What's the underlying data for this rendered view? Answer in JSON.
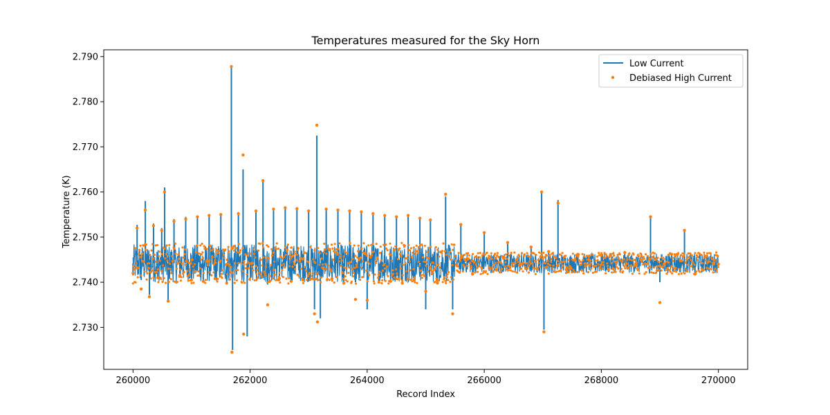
{
  "chart_data": {
    "type": "line",
    "title": "Temperatures measured for the Sky Horn",
    "xlabel": "Record Index",
    "ylabel": "Temperature (K)",
    "xlim": [
      259500,
      270500
    ],
    "ylim": [
      2.7207,
      2.7915
    ],
    "xticks": [
      260000,
      262000,
      264000,
      266000,
      268000,
      270000
    ],
    "yticks": [
      2.73,
      2.74,
      2.75,
      2.76,
      2.77,
      2.78,
      2.79
    ],
    "xtick_labels": [
      "260000",
      "262000",
      "264000",
      "266000",
      "268000",
      "270000"
    ],
    "ytick_labels": [
      "2.730",
      "2.740",
      "2.750",
      "2.760",
      "2.770",
      "2.780",
      "2.790"
    ],
    "legend_position": "top-right",
    "colors": {
      "low_current": "#1f77b4",
      "high_current": "#ff7f0e"
    },
    "series": [
      {
        "name": "Low Current",
        "style": "line",
        "x": [
          260000,
          260070,
          260140,
          260210,
          260280,
          260350,
          260420,
          260490,
          260540,
          260600,
          260700,
          260800,
          260900,
          261000,
          261100,
          261200,
          261300,
          261400,
          261500,
          261600,
          261680,
          261700,
          261800,
          261880,
          261950,
          262100,
          262220,
          262300,
          262400,
          262500,
          262600,
          262700,
          262800,
          262900,
          263000,
          263100,
          263140,
          263200,
          263300,
          263400,
          263500,
          263600,
          263700,
          263800,
          263900,
          264000,
          264100,
          264200,
          264300,
          264400,
          264500,
          264600,
          264700,
          264800,
          264900,
          265000,
          265080,
          265200,
          265340,
          265460,
          265600,
          265800,
          266000,
          266200,
          266400,
          266600,
          266800,
          266980,
          267020,
          267100,
          267260,
          267400,
          267600,
          267800,
          268000,
          268200,
          268400,
          268600,
          268840,
          269000,
          269200,
          269420,
          269600,
          269800,
          270000
        ],
        "y": [
          2.7415,
          2.7527,
          2.7405,
          2.758,
          2.7372,
          2.753,
          2.7412,
          2.752,
          2.761,
          2.736,
          2.754,
          2.742,
          2.7545,
          2.7408,
          2.7548,
          2.7405,
          2.755,
          2.741,
          2.7552,
          2.74,
          2.788,
          2.725,
          2.7555,
          2.765,
          2.728,
          2.756,
          2.7628,
          2.7395,
          2.7565,
          2.741,
          2.7568,
          2.7405,
          2.7566,
          2.7408,
          2.756,
          2.734,
          2.7725,
          2.732,
          2.7565,
          2.741,
          2.7562,
          2.74,
          2.756,
          2.74,
          2.7558,
          2.734,
          2.7555,
          2.7402,
          2.755,
          2.7405,
          2.7548,
          2.74,
          2.755,
          2.7408,
          2.7545,
          2.734,
          2.754,
          2.74,
          2.759,
          2.734,
          2.753,
          2.742,
          2.7512,
          2.743,
          2.749,
          2.744,
          2.748,
          2.76,
          2.7295,
          2.747,
          2.7582,
          2.743,
          2.7465,
          2.744,
          2.7462,
          2.7432,
          2.7468,
          2.744,
          2.7548,
          2.74,
          2.7465,
          2.7518,
          2.742,
          2.746,
          2.744
        ]
      },
      {
        "name": "Debiased High Current",
        "style": "scatter",
        "x": [
          260000,
          260070,
          260140,
          260210,
          260280,
          260350,
          260420,
          260490,
          260540,
          260600,
          260700,
          260800,
          260900,
          261000,
          261100,
          261200,
          261300,
          261400,
          261500,
          261600,
          261680,
          261690,
          261800,
          261880,
          261890,
          262100,
          262220,
          262300,
          262400,
          262500,
          262600,
          262700,
          262800,
          262900,
          263000,
          263100,
          263140,
          263150,
          263300,
          263400,
          263500,
          263600,
          263700,
          263800,
          263900,
          264000,
          264100,
          264200,
          264300,
          264400,
          264500,
          264600,
          264700,
          264800,
          264900,
          265000,
          265080,
          265200,
          265340,
          265460,
          265600,
          265800,
          266000,
          266200,
          266400,
          266600,
          266800,
          266980,
          267020,
          267100,
          267260,
          267400,
          267600,
          267800,
          268000,
          268200,
          268400,
          268600,
          268840,
          269000,
          269200,
          269420,
          269600,
          269800,
          270000
        ],
        "y": [
          2.742,
          2.752,
          2.7385,
          2.756,
          2.7368,
          2.7525,
          2.741,
          2.7515,
          2.76,
          2.7358,
          2.7535,
          2.7415,
          2.754,
          2.7405,
          2.7545,
          2.7402,
          2.7548,
          2.7408,
          2.755,
          2.7398,
          2.7878,
          2.7245,
          2.7552,
          2.7682,
          2.7285,
          2.7558,
          2.7625,
          2.735,
          2.7562,
          2.7408,
          2.7565,
          2.7402,
          2.7563,
          2.7405,
          2.7558,
          2.733,
          2.7748,
          2.7312,
          2.7562,
          2.7408,
          2.756,
          2.7398,
          2.7558,
          2.7362,
          2.7556,
          2.736,
          2.7552,
          2.74,
          2.7548,
          2.7402,
          2.7545,
          2.7398,
          2.7548,
          2.7405,
          2.7542,
          2.738,
          2.7538,
          2.7398,
          2.7595,
          2.733,
          2.7528,
          2.7418,
          2.751,
          2.7428,
          2.7488,
          2.7438,
          2.7478,
          2.76,
          2.729,
          2.7468,
          2.7575,
          2.7428,
          2.7462,
          2.7438,
          2.746,
          2.743,
          2.7466,
          2.7438,
          2.7545,
          2.7355,
          2.7462,
          2.7515,
          2.7418,
          2.7458,
          2.744
        ]
      }
    ]
  }
}
